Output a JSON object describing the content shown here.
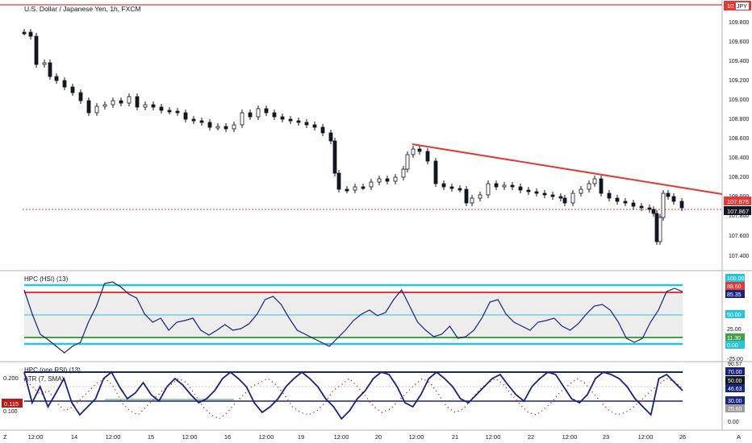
{
  "symbol_title": "U.S. Dollar / Japanese Yen, 1h, FXCM",
  "price_panel": {
    "scale_label_top": "10",
    "symbol_short": "JPY",
    "price_ticks": [
      "109.800",
      "109.600",
      "109.400",
      "109.200",
      "109.000",
      "108.800",
      "108.600",
      "108.400",
      "108.200",
      "108.000",
      "107.800",
      "107.600",
      "107.400"
    ],
    "last_price_red": "107.876",
    "last_price_black": "107.867",
    "colors": {
      "trendline": "#e53935",
      "up": "#ffffff",
      "down": "#131722",
      "resistance": "#e53935"
    }
  },
  "hpc_panel": {
    "title": "HPC (HSI) (13)",
    "ticks": [
      "100.00",
      "88.60",
      "85.35",
      "50.00",
      "25.00",
      "11.30",
      "0.00",
      "-25.00"
    ],
    "tick_colors": {
      "100.00": "#26c6da",
      "88.60": "#e53935",
      "85.35": "#1a237e",
      "50.00": "#26c6da",
      "11.30": "#43a047",
      "0.00": "#26c6da"
    }
  },
  "atr_panel": {
    "title_line1": "HPC (one RSI) (13)",
    "title_line2": "ATR (7, SMA)",
    "left_value_top": "0.200",
    "left_badge": "0.115",
    "left_value_bottom": "0.100",
    "ticks": [
      "90.57",
      "70.00",
      "50.00",
      "46.63",
      "30.00",
      "25.60",
      "0.00"
    ]
  },
  "time_axis": {
    "left_corner": "Z",
    "right_corner": "A",
    "labels": [
      "12:00",
      "14",
      "12:00",
      "15",
      "12:00",
      "16",
      "12:00",
      "19",
      "12:00",
      "20",
      "12:00",
      "21",
      "12:00",
      "22",
      "12:00",
      "23",
      "12:00",
      "26"
    ]
  }
}
